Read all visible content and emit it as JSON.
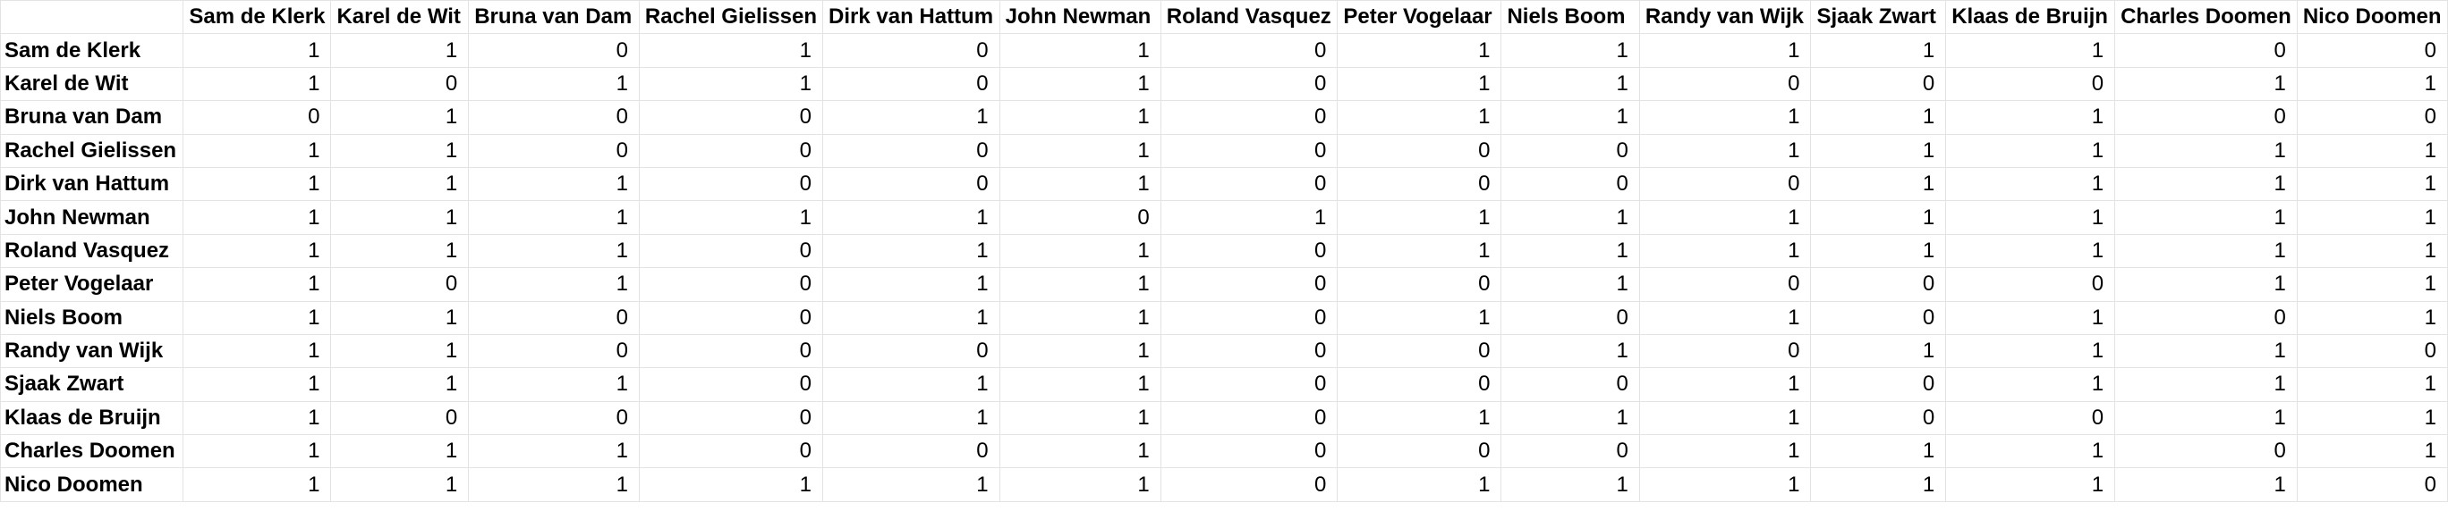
{
  "sheet": {
    "columns": [
      "Sam de Klerk",
      "Karel de Wit",
      "Bruna van Dam",
      "Rachel Gielissen",
      "Dirk van Hattum",
      "John Newman",
      "Roland Vasquez",
      "Peter Vogelaar",
      "Niels Boom",
      "Randy van Wijk",
      "Sjaak Zwart",
      "Klaas de Bruijn",
      "Charles Doomen",
      "Nico Doomen"
    ],
    "rows": [
      {
        "name": "Sam de Klerk",
        "values": [
          1,
          1,
          0,
          1,
          0,
          1,
          0,
          1,
          1,
          1,
          1,
          1,
          0,
          0
        ]
      },
      {
        "name": "Karel de Wit",
        "values": [
          1,
          0,
          1,
          1,
          0,
          1,
          0,
          1,
          1,
          0,
          0,
          0,
          1,
          1
        ]
      },
      {
        "name": "Bruna van Dam",
        "values": [
          0,
          1,
          0,
          0,
          1,
          1,
          0,
          1,
          1,
          1,
          1,
          1,
          0,
          0
        ]
      },
      {
        "name": "Rachel Gielissen",
        "values": [
          1,
          1,
          0,
          0,
          0,
          1,
          0,
          0,
          0,
          1,
          1,
          1,
          1,
          1
        ]
      },
      {
        "name": "Dirk van Hattum",
        "values": [
          1,
          1,
          1,
          0,
          0,
          1,
          0,
          0,
          0,
          0,
          1,
          1,
          1,
          1
        ]
      },
      {
        "name": "John Newman",
        "values": [
          1,
          1,
          1,
          1,
          1,
          0,
          1,
          1,
          1,
          1,
          1,
          1,
          1,
          1
        ]
      },
      {
        "name": "Roland Vasquez",
        "values": [
          1,
          1,
          1,
          0,
          1,
          1,
          0,
          1,
          1,
          1,
          1,
          1,
          1,
          1
        ]
      },
      {
        "name": "Peter Vogelaar",
        "values": [
          1,
          0,
          1,
          0,
          1,
          1,
          0,
          0,
          1,
          0,
          0,
          0,
          1,
          1
        ]
      },
      {
        "name": "Niels Boom",
        "values": [
          1,
          1,
          0,
          0,
          1,
          1,
          0,
          1,
          0,
          1,
          0,
          1,
          0,
          1
        ]
      },
      {
        "name": "Randy van Wijk",
        "values": [
          1,
          1,
          0,
          0,
          0,
          1,
          0,
          0,
          1,
          0,
          1,
          1,
          1,
          0
        ]
      },
      {
        "name": "Sjaak Zwart",
        "values": [
          1,
          1,
          1,
          0,
          1,
          1,
          0,
          0,
          0,
          1,
          0,
          1,
          1,
          1
        ]
      },
      {
        "name": "Klaas de Bruijn",
        "values": [
          1,
          0,
          0,
          0,
          1,
          1,
          0,
          1,
          1,
          1,
          0,
          0,
          1,
          1
        ]
      },
      {
        "name": "Charles Doomen",
        "values": [
          1,
          1,
          1,
          0,
          0,
          1,
          0,
          0,
          0,
          1,
          1,
          1,
          0,
          1
        ]
      },
      {
        "name": "Nico Doomen",
        "values": [
          1,
          1,
          1,
          1,
          1,
          1,
          0,
          1,
          1,
          1,
          1,
          1,
          1,
          0
        ]
      }
    ]
  }
}
